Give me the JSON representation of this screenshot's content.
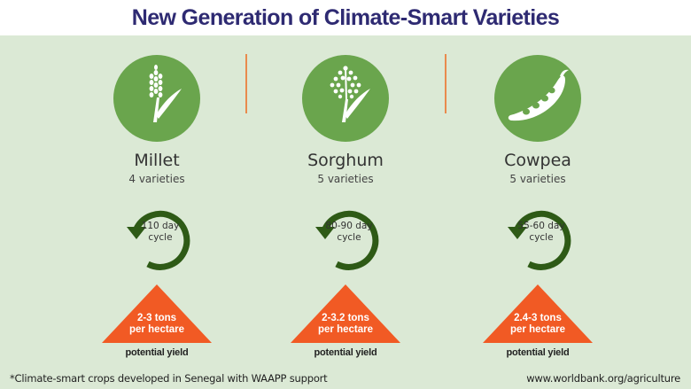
{
  "title": "New Generation of Climate-Smart Varieties",
  "colors": {
    "title": "#2e2a72",
    "background": "#dbe9d5",
    "icon_circle": "#6aa54d",
    "cycle_arrow": "#2e5a16",
    "yield_triangle": "#f15a24",
    "divider": "#e98a4d"
  },
  "crops": [
    {
      "name": "Millet",
      "varieties": "4 varieties",
      "icon": "millet-icon",
      "cycle_line1": "110 day",
      "cycle_line2": "cycle",
      "yield_line1": "2-3 tons",
      "yield_line2": "per hectare",
      "yield_label": "potential yield"
    },
    {
      "name": "Sorghum",
      "varieties": "5 varieties",
      "icon": "sorghum-icon",
      "cycle_line1": "80-90 day",
      "cycle_line2": "cycle",
      "yield_line1": "2-3.2 tons",
      "yield_line2": "per hectare",
      "yield_label": "potential yield"
    },
    {
      "name": "Cowpea",
      "varieties": "5 varieties",
      "icon": "cowpea-icon",
      "cycle_line1": "55-60 day",
      "cycle_line2": "cycle",
      "yield_line1": "2.4-3 tons",
      "yield_line2": "per hectare",
      "yield_label": "potential yield"
    }
  ],
  "footnote": "*Climate-smart crops developed in Senegal with WAAPP support",
  "source": "www.worldbank.org/agriculture"
}
